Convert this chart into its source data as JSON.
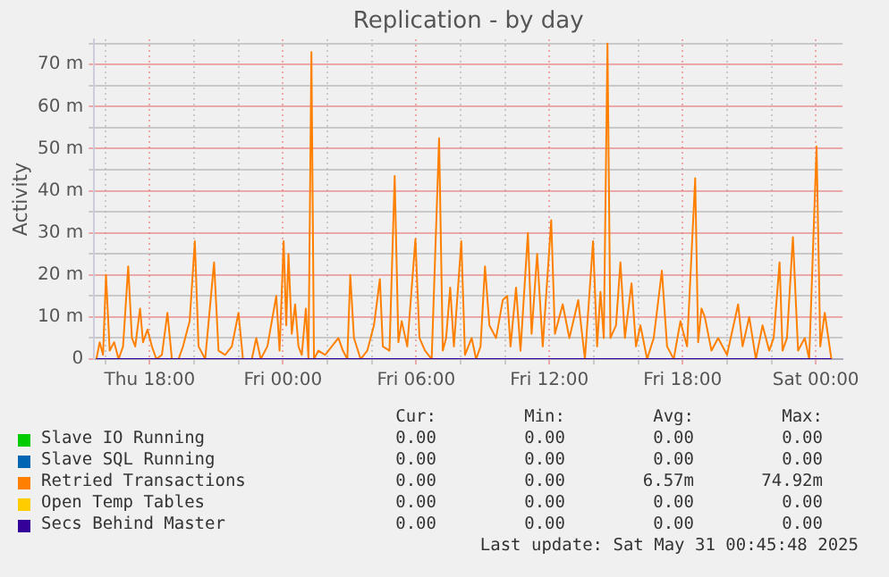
{
  "chart_data": {
    "type": "line",
    "title": "Replication - by day",
    "ylabel": "Activity",
    "xlim": [
      "2025-05-29T15:30",
      "2025-05-31T01:12"
    ],
    "xticks": [
      {
        "value": "2025-05-29T16:00",
        "label": null
      },
      {
        "value": "2025-05-29T18:00",
        "label": "Thu 18:00"
      },
      {
        "value": "2025-05-29T20:00",
        "label": null
      },
      {
        "value": "2025-05-29T22:00",
        "label": null
      },
      {
        "value": "2025-05-30T00:00",
        "label": "Fri 00:00"
      },
      {
        "value": "2025-05-30T02:00",
        "label": null
      },
      {
        "value": "2025-05-30T04:00",
        "label": null
      },
      {
        "value": "2025-05-30T06:00",
        "label": "Fri 06:00"
      },
      {
        "value": "2025-05-30T08:00",
        "label": null
      },
      {
        "value": "2025-05-30T10:00",
        "label": null
      },
      {
        "value": "2025-05-30T12:00",
        "label": "Fri 12:00"
      },
      {
        "value": "2025-05-30T14:00",
        "label": null
      },
      {
        "value": "2025-05-30T16:00",
        "label": null
      },
      {
        "value": "2025-05-30T18:00",
        "label": "Fri 18:00"
      },
      {
        "value": "2025-05-30T20:00",
        "label": null
      },
      {
        "value": "2025-05-30T22:00",
        "label": null
      },
      {
        "value": "2025-05-31T00:00",
        "label": "Sat 00:00"
      }
    ],
    "ylim": [
      0,
      76
    ],
    "yticks": [
      0,
      {
        "value": 5,
        "label": null
      },
      {
        "value": 10,
        "label": "10 m"
      },
      {
        "value": 15,
        "label": null
      },
      {
        "value": 20,
        "label": "20 m"
      },
      {
        "value": 25,
        "label": null
      },
      {
        "value": 30,
        "label": "30 m"
      },
      {
        "value": 35,
        "label": null
      },
      {
        "value": 40,
        "label": "40 m"
      },
      {
        "value": 45,
        "label": null
      },
      {
        "value": 50,
        "label": "50 m"
      },
      {
        "value": 55,
        "label": null
      },
      {
        "value": 60,
        "label": "60 m"
      },
      {
        "value": 65,
        "label": null
      },
      {
        "value": 70,
        "label": "70 m"
      },
      {
        "value": 75,
        "label": null
      }
    ],
    "grid": true,
    "legend": "bottom",
    "marker": "none",
    "line_style": "solid",
    "series": [
      {
        "name": "Slave IO Running",
        "color": "#00cc00"
      },
      {
        "name": "Slave SQL Running",
        "color": "#0066b3"
      },
      {
        "name": "Retried Transactions",
        "color": "#ff8000",
        "x": [
          "2025-05-29T15:36",
          "2025-05-29T15:45",
          "2025-05-29T15:54",
          "2025-05-29T16:02",
          "2025-05-29T16:12",
          "2025-05-29T16:24",
          "2025-05-29T16:36",
          "2025-05-29T16:48",
          "2025-05-29T17:02",
          "2025-05-29T17:12",
          "2025-05-29T17:21",
          "2025-05-29T17:34",
          "2025-05-29T17:42",
          "2025-05-29T17:54",
          "2025-05-29T18:06",
          "2025-05-29T18:18",
          "2025-05-29T18:33",
          "2025-05-29T18:48",
          "2025-05-29T19:00",
          "2025-05-29T19:18",
          "2025-05-29T19:30",
          "2025-05-29T19:48",
          "2025-05-29T20:02",
          "2025-05-29T20:12",
          "2025-05-29T20:30",
          "2025-05-29T20:54",
          "2025-05-29T21:06",
          "2025-05-29T21:24",
          "2025-05-29T21:42",
          "2025-05-29T22:00",
          "2025-05-29T22:12",
          "2025-05-29T22:36",
          "2025-05-29T22:48",
          "2025-05-29T23:00",
          "2025-05-29T23:18",
          "2025-05-29T23:42",
          "2025-05-29T23:51",
          "2025-05-30T00:02",
          "2025-05-30T00:09",
          "2025-05-30T00:15",
          "2025-05-30T00:24",
          "2025-05-30T00:33",
          "2025-05-30T00:42",
          "2025-05-30T00:51",
          "2025-05-30T01:02",
          "2025-05-30T01:09",
          "2025-05-30T01:17",
          "2025-05-30T01:24",
          "2025-05-30T01:36",
          "2025-05-30T01:54",
          "2025-05-30T02:12",
          "2025-05-30T02:30",
          "2025-05-30T02:42",
          "2025-05-30T02:54",
          "2025-05-30T03:02",
          "2025-05-30T03:12",
          "2025-05-30T03:30",
          "2025-05-30T03:48",
          "2025-05-30T04:06",
          "2025-05-30T04:22",
          "2025-05-30T04:30",
          "2025-05-30T04:48",
          "2025-05-30T05:02",
          "2025-05-30T05:12",
          "2025-05-30T05:21",
          "2025-05-30T05:36",
          "2025-05-30T05:58",
          "2025-05-30T06:09",
          "2025-05-30T06:24",
          "2025-05-30T06:42",
          "2025-05-30T07:02",
          "2025-05-30T07:12",
          "2025-05-30T07:21",
          "2025-05-30T07:32",
          "2025-05-30T07:42",
          "2025-05-30T08:02",
          "2025-05-30T08:12",
          "2025-05-30T08:30",
          "2025-05-30T08:42",
          "2025-05-30T08:54",
          "2025-05-30T09:06",
          "2025-05-30T09:18",
          "2025-05-30T09:36",
          "2025-05-30T09:54",
          "2025-05-30T10:06",
          "2025-05-30T10:15",
          "2025-05-30T10:30",
          "2025-05-30T10:42",
          "2025-05-30T11:02",
          "2025-05-30T11:12",
          "2025-05-30T11:27",
          "2025-05-30T11:42",
          "2025-05-30T12:05",
          "2025-05-30T12:15",
          "2025-05-30T12:36",
          "2025-05-30T12:54",
          "2025-05-30T13:18",
          "2025-05-30T13:36",
          "2025-05-30T13:58",
          "2025-05-30T14:09",
          "2025-05-30T14:18",
          "2025-05-30T14:27",
          "2025-05-30T14:37",
          "2025-05-30T14:45",
          "2025-05-30T15:00",
          "2025-05-30T15:12",
          "2025-05-30T15:24",
          "2025-05-30T15:42",
          "2025-05-30T15:54",
          "2025-05-30T16:06",
          "2025-05-30T16:24",
          "2025-05-30T16:42",
          "2025-05-30T17:04",
          "2025-05-30T17:18",
          "2025-05-30T17:36",
          "2025-05-30T17:54",
          "2025-05-30T18:12",
          "2025-05-30T18:34",
          "2025-05-30T18:42",
          "2025-05-30T18:51",
          "2025-05-30T19:00",
          "2025-05-30T19:18",
          "2025-05-30T19:36",
          "2025-05-30T20:00",
          "2025-05-30T20:30",
          "2025-05-30T20:42",
          "2025-05-30T21:00",
          "2025-05-30T21:18",
          "2025-05-30T21:36",
          "2025-05-30T21:54",
          "2025-05-30T22:06",
          "2025-05-30T22:22",
          "2025-05-30T22:30",
          "2025-05-30T22:42",
          "2025-05-30T22:58",
          "2025-05-30T23:12",
          "2025-05-30T23:30",
          "2025-05-30T23:42",
          "2025-05-31T00:02",
          "2025-05-31T00:12",
          "2025-05-31T00:24",
          "2025-05-31T00:42"
        ],
        "values": [
          0,
          4,
          1,
          20,
          2,
          4,
          0,
          3,
          22,
          5,
          3,
          12,
          4,
          7,
          3,
          0,
          1,
          11,
          0,
          0,
          3,
          9,
          28,
          3,
          0,
          23,
          2,
          1,
          3,
          11,
          0,
          0,
          5,
          0,
          3,
          15,
          2,
          28,
          8,
          25,
          6,
          13,
          3,
          1,
          12,
          0,
          73,
          0,
          2,
          1,
          3,
          5,
          2,
          0,
          20,
          5,
          0,
          2,
          8,
          19,
          3,
          2,
          43.5,
          4,
          9,
          3,
          28.5,
          5,
          2,
          0,
          52.5,
          2,
          5,
          17,
          3,
          28,
          1,
          5,
          0,
          3,
          22,
          8,
          5,
          14,
          15,
          3,
          17,
          2,
          30,
          6,
          25,
          3,
          33,
          6,
          13,
          5,
          14,
          0,
          28,
          3,
          16,
          5,
          75,
          5,
          8,
          23,
          5,
          18,
          3,
          8,
          0,
          5,
          21,
          3,
          0,
          9,
          3,
          43,
          4,
          12,
          10,
          2,
          5,
          1,
          13,
          3,
          10,
          0,
          8,
          2,
          5,
          23,
          2,
          5,
          29,
          2,
          5,
          0,
          50.5,
          3,
          11,
          0
        ]
      },
      {
        "name": "Open Temp Tables",
        "color": "#ffcc00"
      },
      {
        "name": "Secs Behind Master",
        "color": "#330099",
        "x": [
          "2025-05-29T15:36",
          "2025-05-31T00:42"
        ],
        "values": [
          0,
          0
        ]
      }
    ],
    "annotations": [
      "Cur:",
      "Min:",
      "Avg:",
      "Max:",
      "0.00",
      "0.00",
      "0.00",
      "0.00",
      "0.00",
      "0.00",
      "0.00",
      "0.00",
      "0.00",
      "0.00",
      "6.57m",
      "74.92m",
      "0.00",
      "0.00",
      "0.00",
      "0.00",
      "0.00",
      "0.00",
      "0.00",
      "0.00",
      "Last update: Sat May 31 00:45:48 2025"
    ]
  }
}
